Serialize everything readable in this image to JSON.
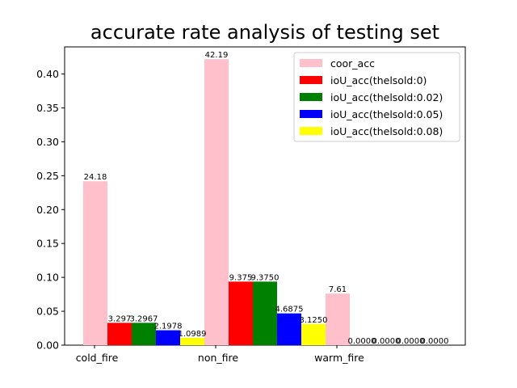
{
  "chart_data": {
    "type": "bar",
    "title": "accurate rate analysis of testing set",
    "xlabel": "",
    "ylabel": "",
    "categories": [
      "cold_fire",
      "non_fire",
      "warm_fire"
    ],
    "ylim": [
      0,
      0.44
    ],
    "yticks": [
      "0.00",
      "0.05",
      "0.10",
      "0.15",
      "0.20",
      "0.25",
      "0.30",
      "0.35",
      "0.40"
    ],
    "grid": false,
    "legend_position": "top-right",
    "series": [
      {
        "name": "coor_acc",
        "color": "#ffc0cb",
        "values": [
          0.2418,
          0.4219,
          0.0761
        ],
        "labels": [
          "24.18",
          "42.19",
          "7.61"
        ]
      },
      {
        "name": "ioU_acc(thelsold:0)",
        "color": "#ff0000",
        "values": [
          0.03297,
          0.09375,
          0.0
        ],
        "labels": [
          "3.297",
          "9.375",
          "0.0000"
        ]
      },
      {
        "name": "ioU_acc(thelsold:0.02)",
        "color": "#008000",
        "values": [
          0.032967,
          0.09375,
          0.0
        ],
        "labels": [
          "3.2967",
          "9.3750",
          "0.0000"
        ]
      },
      {
        "name": "ioU_acc(thelsold:0.05)",
        "color": "#0000ff",
        "values": [
          0.021978,
          0.046875,
          0.0
        ],
        "labels": [
          "2.1978",
          "4.6875",
          "0.0000"
        ]
      },
      {
        "name": "ioU_acc(thelsold:0.08)",
        "color": "#ffff00",
        "values": [
          0.010989,
          0.03125,
          0.0
        ],
        "labels": [
          "1.0989",
          "3.1250",
          "0.0000"
        ]
      }
    ]
  }
}
